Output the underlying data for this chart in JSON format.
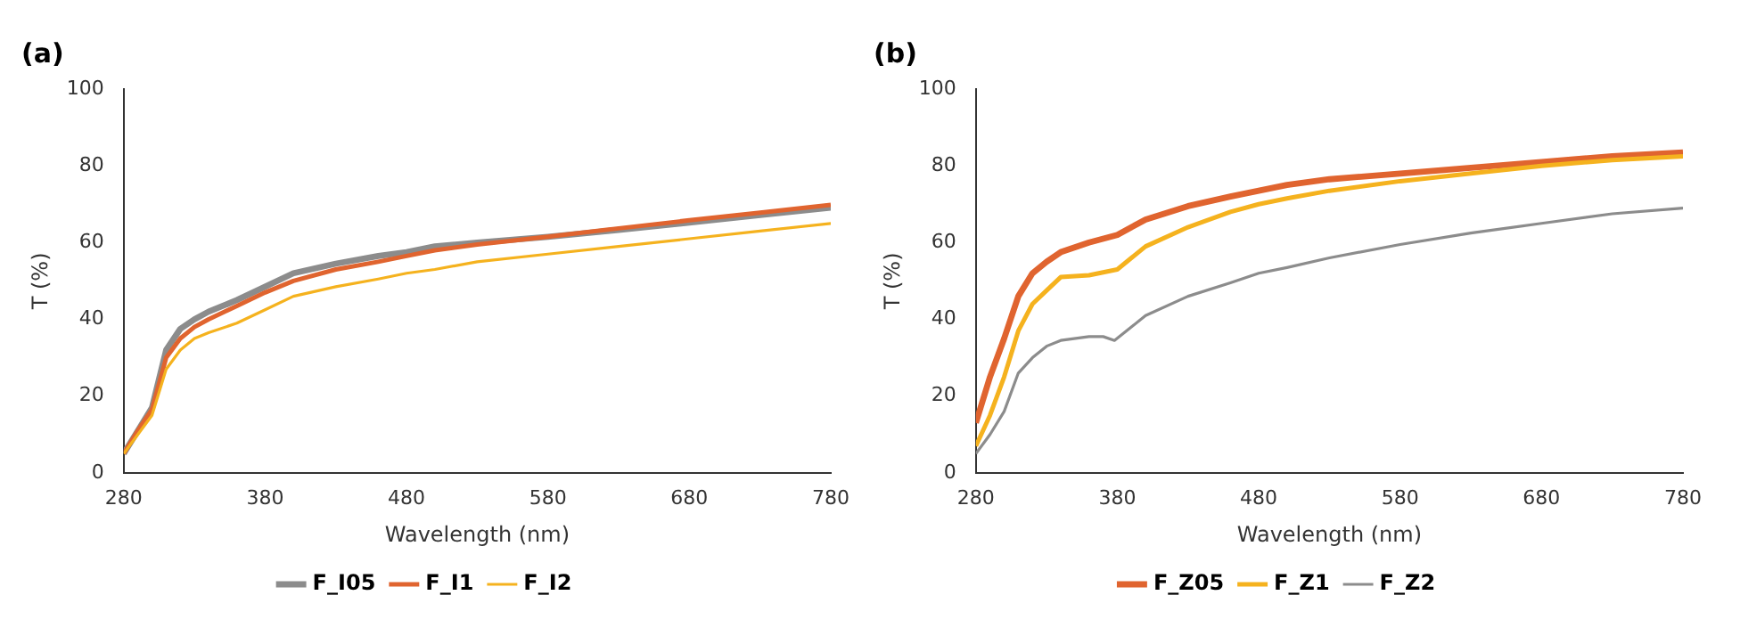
{
  "chart_data": [
    {
      "type": "line",
      "title": "(a)",
      "xlabel": "Wavelength (nm)",
      "ylabel": "T (%)",
      "xlim": [
        280,
        780
      ],
      "xticks": [
        280,
        380,
        480,
        580,
        680,
        780
      ],
      "ylim": [
        0,
        100
      ],
      "yticks": [
        0,
        20,
        40,
        60,
        80,
        100
      ],
      "grid": false,
      "legend": "bottom",
      "x": [
        280,
        290,
        300,
        310,
        320,
        330,
        340,
        360,
        380,
        400,
        430,
        460,
        480,
        500,
        530,
        580,
        630,
        680,
        730,
        780
      ],
      "series": [
        {
          "name": "F_I05",
          "color": "#8c8c8c",
          "values": [
            5,
            11,
            17,
            32,
            37.5,
            40,
            42,
            45,
            48.5,
            52,
            54.5,
            56.5,
            57.5,
            59,
            60,
            61.5,
            63.3,
            65.2,
            67.2,
            69.1
          ]
        },
        {
          "name": "F_I1",
          "color": "#e0642f",
          "values": [
            5,
            11,
            16.5,
            30,
            35,
            38,
            40,
            43.5,
            47,
            50,
            53,
            55,
            56.5,
            58,
            59.5,
            61.5,
            63.7,
            65.8,
            67.8,
            69.8
          ]
        },
        {
          "name": "F_I2",
          "color": "#f5b21e",
          "values": [
            5,
            10,
            15,
            27,
            32,
            35,
            36.5,
            39,
            42.5,
            46,
            48.5,
            50.5,
            52,
            53,
            55,
            57,
            59,
            61,
            63,
            65
          ]
        }
      ]
    },
    {
      "type": "line",
      "title": "(b)",
      "xlabel": "Wavelength (nm)",
      "ylabel": "T (%)",
      "xlim": [
        280,
        780
      ],
      "xticks": [
        280,
        380,
        480,
        580,
        680,
        780
      ],
      "ylim": [
        0,
        100
      ],
      "yticks": [
        0,
        20,
        40,
        60,
        80,
        100
      ],
      "grid": false,
      "legend": "bottom",
      "series": [
        {
          "name": "F_Z05",
          "color": "#e0642f",
          "x": [
            280,
            290,
            300,
            310,
            320,
            330,
            340,
            360,
            380,
            400,
            430,
            460,
            480,
            500,
            530,
            580,
            630,
            680,
            730,
            780
          ],
          "values": [
            13,
            25,
            35,
            46,
            52,
            55,
            57.5,
            60,
            62,
            66,
            69.5,
            72,
            73.5,
            75,
            76.5,
            78,
            79.5,
            81,
            82.5,
            83.5
          ]
        },
        {
          "name": "F_Z1",
          "color": "#f5b21e",
          "x": [
            280,
            290,
            300,
            310,
            320,
            330,
            340,
            360,
            380,
            390,
            400,
            430,
            460,
            480,
            500,
            530,
            580,
            630,
            680,
            730,
            780
          ],
          "values": [
            7,
            15,
            25,
            37,
            44,
            47.5,
            51,
            51.5,
            53,
            56,
            59,
            64,
            68,
            70,
            71.5,
            73.5,
            76,
            78,
            80,
            81.5,
            82.5
          ]
        },
        {
          "name": "F_Z2",
          "color": "#8c8c8c",
          "x": [
            280,
            290,
            300,
            310,
            320,
            330,
            340,
            360,
            370,
            378,
            390,
            400,
            430,
            460,
            480,
            500,
            530,
            580,
            630,
            680,
            730,
            780
          ],
          "values": [
            5,
            10,
            16,
            26,
            30,
            33,
            34.5,
            35.5,
            35.5,
            34.5,
            38,
            41,
            46,
            49.5,
            52,
            53.5,
            56,
            59.5,
            62.5,
            65,
            67.5,
            69
          ]
        }
      ]
    }
  ]
}
